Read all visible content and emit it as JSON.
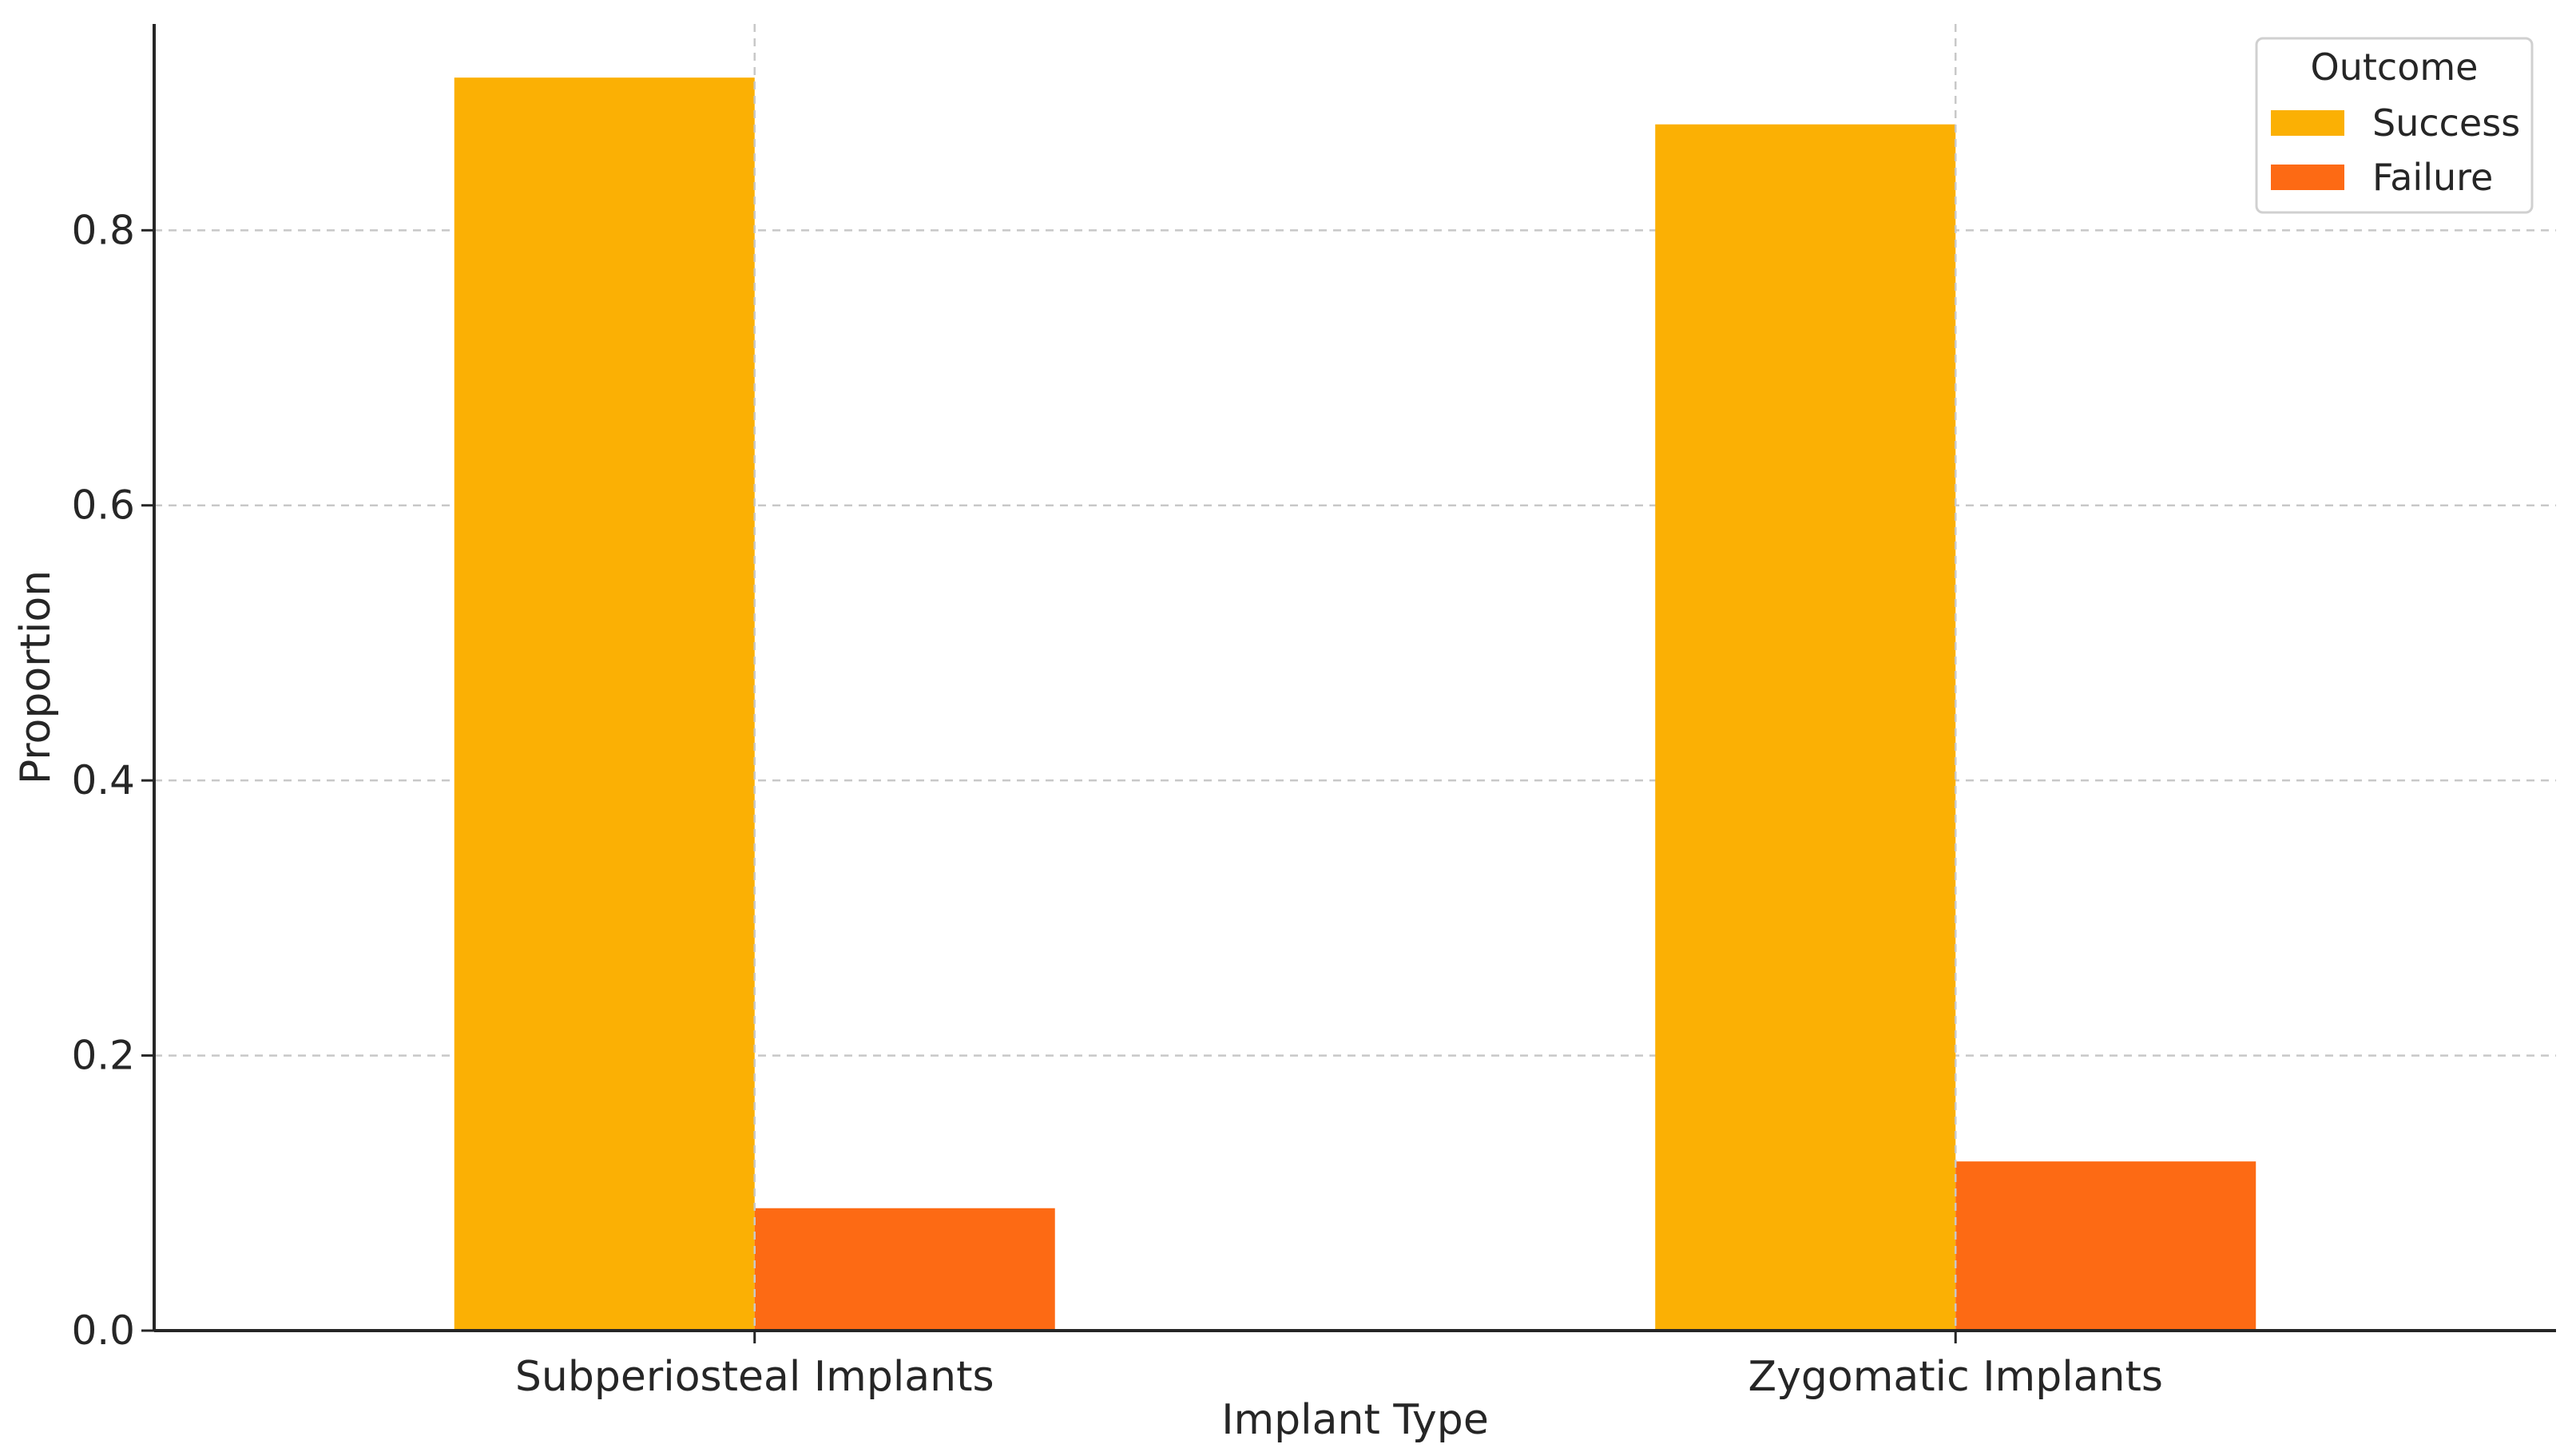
{
  "chart_data": {
    "type": "bar",
    "xlabel": "Implant Type",
    "ylabel": "Proportion",
    "categories": [
      "Subperiosteal Implants",
      "Zygomatic Implants"
    ],
    "ylim": [
      0,
      0.95
    ],
    "yticks": [
      "0.0",
      "0.2",
      "0.4",
      "0.6",
      "0.8"
    ],
    "ytick_values": [
      0,
      0.2,
      0.4,
      0.6,
      0.8
    ],
    "grid": true,
    "legend": {
      "title": "Outcome",
      "placement": "top-right"
    },
    "series": [
      {
        "name": "Success",
        "color": "#fbb004",
        "values": [
          0.911,
          0.877
        ]
      },
      {
        "name": "Failure",
        "color": "#fd6a14",
        "values": [
          0.089,
          0.123
        ]
      }
    ]
  }
}
